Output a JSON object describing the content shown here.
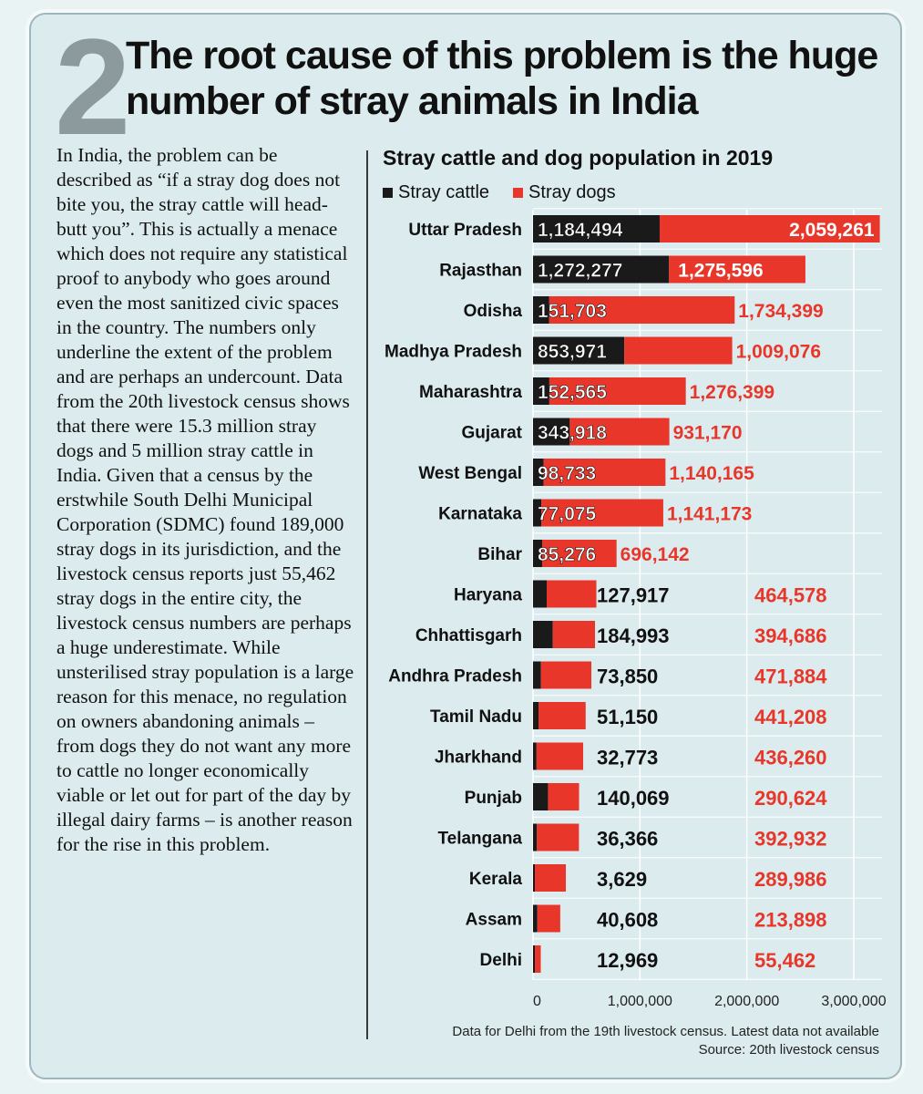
{
  "section_number": "2",
  "headline": "The root cause of this problem is the huge number of stray animals in India",
  "body_text": "In India, the problem can be described as “if a stray dog does not bite you, the stray cattle will head-butt you”. This is actually a menace which does not require any statistical proof to anybody who goes around even the most sanitized civic spaces in the country. The numbers only underline the extent of the problem and are perhaps an undercount. Data from the 20th livestock census shows that there were 15.3 million stray dogs and 5 million stray cattle in India. Given that a census by the erstwhile South Delhi Municipal Corporation (SDMC) found 189,000 stray dogs in its jurisdiction, and the livestock census reports just 55,462 stray dogs in the entire city, the livestock census numbers are perhaps a huge underestimate. While unsterilised stray population is a large reason for this menace, no regulation on owners abandoning animals – from dogs they do not want any more to cattle no longer economically viable or let out for part of the day by illegal dairy farms – is another reason for the rise in this problem.",
  "footnote": {
    "line1": "Data for Delhi from the 19th livestock census. Latest data not available",
    "line2": "Source: 20th livestock census"
  },
  "colors": {
    "cattle": "#1a1a1a",
    "dogs": "#e8372a",
    "background": "#dcecee",
    "grid": "#ffffff"
  },
  "chart_data": {
    "type": "bar",
    "orientation": "horizontal",
    "stacked": true,
    "title": "Stray cattle and dog population in 2019",
    "categories": [
      "Uttar Pradesh",
      "Rajasthan",
      "Odisha",
      "Madhya Pradesh",
      "Maharashtra",
      "Gujarat",
      "West Bengal",
      "Karnataka",
      "Bihar",
      "Haryana",
      "Chhattisgarh",
      "Andhra Pradesh",
      "Tamil Nadu",
      "Jharkhand",
      "Punjab",
      "Telangana",
      "Kerala",
      "Assam",
      "Delhi"
    ],
    "series": [
      {
        "name": "Stray cattle",
        "values": [
          1184494,
          1272277,
          151703,
          853971,
          152565,
          343918,
          98733,
          77075,
          85276,
          127917,
          184993,
          73850,
          51150,
          32773,
          140069,
          36366,
          3629,
          40608,
          12969
        ]
      },
      {
        "name": "Stray dogs",
        "values": [
          2059261,
          1275596,
          1734399,
          1009076,
          1276399,
          931170,
          1140165,
          1141173,
          696142,
          464578,
          394686,
          471884,
          441208,
          436260,
          290624,
          392932,
          289986,
          213898,
          55462
        ]
      }
    ],
    "x_ticks": [
      "0",
      "1,000,000",
      "2,000,000",
      "3,000,000"
    ],
    "xlim": [
      0,
      3300000
    ],
    "grid": true,
    "legend": "top-left"
  }
}
